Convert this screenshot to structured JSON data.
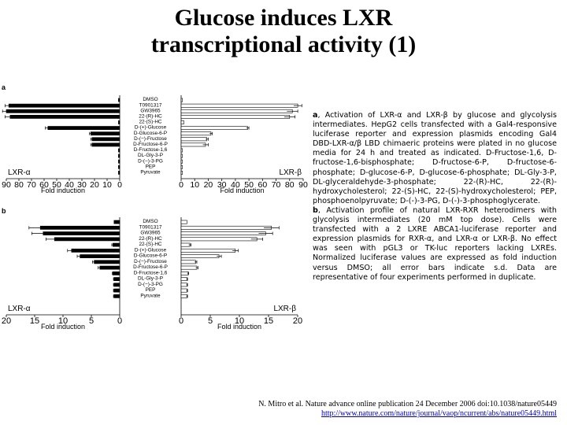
{
  "slide": {
    "title_line1": "Glucose induces LXR",
    "title_line2": "transcriptional activity (1)"
  },
  "caption": {
    "a_label": "a",
    "a_text": ", Activation of LXR-α and LXR-β by glucose and glycolysis intermediates. HepG2 cells transfected with a Gal4-responsive luciferase reporter and expression plasmids encoding Gal4 DBD-LXR-α/β LBD chimaeric proteins were plated in no glucose media for 24 h and treated as indicated. D-Fructose-1,6, D-fructose-1,6-bisphosphate; D-fructose-6-P, D-fructose-6-phosphate; D-glucose-6-P, D-glucose-6-phosphate; DL-Gly-3-P, DL-glyceraldehyde-3-phosphate; 22-(R)-HC, 22-(R)-hydroxycholesterol; 22-(S)-HC, 22-(S)-hydroxycholesterol; PEP, phosphoenolpyruvate; D-(-)-3-PG, D-(-)-3-phosphoglycerate.",
    "b_label": "b",
    "b_text": ", Activation profile of natural LXR-RXR heterodimers with glycolysis intermediates (20 mM top dose). Cells were transfected with a 2 LXRE ABCA1-luciferase reporter and expression plasmids for RXR-α, and LXR-α or LXR-β. No effect was seen with pGL3 or TK-luc reporters lacking LXREs. Normalized luciferase values are expressed as fold induction versus DMSO; all error bars indicate s.d. Data are representative of four experiments performed in duplicate."
  },
  "citation": {
    "text": "N. Mitro et al. Nature advance online publication 24 December 2006 doi:10.1038/nature05449",
    "url": "http://www.nature.com/nature/journal/vaop/ncurrent/abs/nature05449.html"
  },
  "chart_data": [
    {
      "panel": "a",
      "series": "LXR-α",
      "type": "bar",
      "orientation": "horizontal-leftward",
      "xlabel": "Fold induction",
      "xlim": [
        0,
        90
      ],
      "ticks": [
        "90",
        "80",
        "70",
        "60",
        "50",
        "40",
        "30",
        "20",
        "10",
        "0"
      ],
      "fill": "#000000",
      "categories": [
        "DMSO",
        "T0901317",
        "GW3965",
        "22-(R)-HC",
        "22-(S)-HC",
        "D-(+)-Glucose",
        "D-Glucose-6-P",
        "D-(−)-Fructose",
        "D-Fructose-6-P",
        "D-Fructose-1,6",
        "DL-Gly-3-P",
        "D-(−)-3-PG",
        "PEP",
        "Pyruvate"
      ],
      "values": [
        1,
        88,
        90,
        87,
        1,
        57,
        23,
        22,
        22,
        1,
        1,
        1,
        1,
        1
      ],
      "errors": [
        0,
        3,
        3,
        4,
        0,
        2,
        1,
        1,
        1,
        0,
        0,
        0,
        0,
        0
      ]
    },
    {
      "panel": "a",
      "series": "LXR-β",
      "type": "bar",
      "orientation": "horizontal-rightward",
      "xlabel": "Fold induction",
      "xlim": [
        0,
        90
      ],
      "ticks": [
        "0",
        "10",
        "20",
        "30",
        "40",
        "50",
        "60",
        "70",
        "80",
        "90"
      ],
      "fill": "#ffffff",
      "categories": [
        "DMSO",
        "T0901317",
        "GW3965",
        "22-(R)-HC",
        "22-(S)-HC",
        "D-(+)-Glucose",
        "D-Glucose-6-P",
        "D-(−)-Fructose",
        "D-Fructose-6-P",
        "D-Fructose-1,6",
        "DL-Gly-3-P",
        "D-(−)-3-PG",
        "PEP",
        "Pyruvate"
      ],
      "values": [
        1,
        86,
        82,
        80,
        2,
        49,
        22,
        19,
        18,
        1,
        1,
        1,
        1,
        1
      ],
      "errors": [
        0,
        3,
        4,
        4,
        0,
        1,
        1,
        1,
        2,
        0,
        0,
        0,
        0,
        0
      ]
    },
    {
      "panel": "b",
      "series": "LXR-α",
      "type": "bar",
      "orientation": "horizontal-leftward",
      "xlabel": "Fold induction",
      "xlim": [
        0,
        20
      ],
      "ticks": [
        "20",
        "15",
        "10",
        "5",
        "0"
      ],
      "fill": "#000000",
      "categories": [
        "DMSO",
        "T0901317",
        "GW3965",
        "22-(R)-HC",
        "22-(S)-HC",
        "D-(+)-Glucose",
        "D-Glucose-6-P",
        "D-(−)-Fructose",
        "D-Fructose-6-P",
        "D-Fructose-1,6",
        "DL-Gly-3-P",
        "D-(−)-3-PG",
        "PEP",
        "Pyruvate"
      ],
      "values": [
        1,
        14,
        13.5,
        11.5,
        1.2,
        8.5,
        7,
        4.5,
        3.5,
        1.2,
        1,
        1,
        1,
        1
      ],
      "errors": [
        0,
        2,
        2,
        1.5,
        0.2,
        0.7,
        0.5,
        0.3,
        0.3,
        0.1,
        0.1,
        0.1,
        0.1,
        0.1
      ]
    },
    {
      "panel": "b",
      "series": "LXR-β",
      "type": "bar",
      "orientation": "horizontal-rightward",
      "xlabel": "Fold induction",
      "xlim": [
        0,
        20
      ],
      "ticks": [
        "0",
        "5",
        "10",
        "15",
        "20"
      ],
      "fill": "#ffffff",
      "categories": [
        "DMSO",
        "T0901317",
        "GW3965",
        "22-(R)-HC",
        "22-(S)-HC",
        "D-(+)-Glucose",
        "D-Glucose-6-P",
        "D-(−)-Fructose",
        "D-Fructose-6-P",
        "D-Fructose-1,6",
        "DL-Gly-3-P",
        "D-(−)-3-PG",
        "PEP",
        "Pyruvate"
      ],
      "values": [
        1,
        15.5,
        14.5,
        13,
        1.5,
        9.3,
        6.5,
        2.5,
        2.7,
        1.2,
        1,
        1,
        1,
        1
      ],
      "errors": [
        0,
        1.3,
        1.2,
        1,
        0.2,
        0.5,
        0.4,
        0.2,
        0.2,
        0.1,
        0.1,
        0.1,
        0.1,
        0.1
      ]
    }
  ],
  "panel_labels": [
    "a",
    "b"
  ],
  "category_labels": [
    "DMSO",
    "T0901317",
    "GW3965",
    "22-(R)-HC",
    "22-(S)-HC",
    "D-(+)-Glucose",
    "D-Glucose-6-P",
    "D-(−)-Fructose",
    "D-Fructose-6-P",
    "D-Fructose-1,6",
    "DL-Gly-3-P",
    "D-(−)-3-PG",
    "PEP",
    "Pyruvate"
  ]
}
